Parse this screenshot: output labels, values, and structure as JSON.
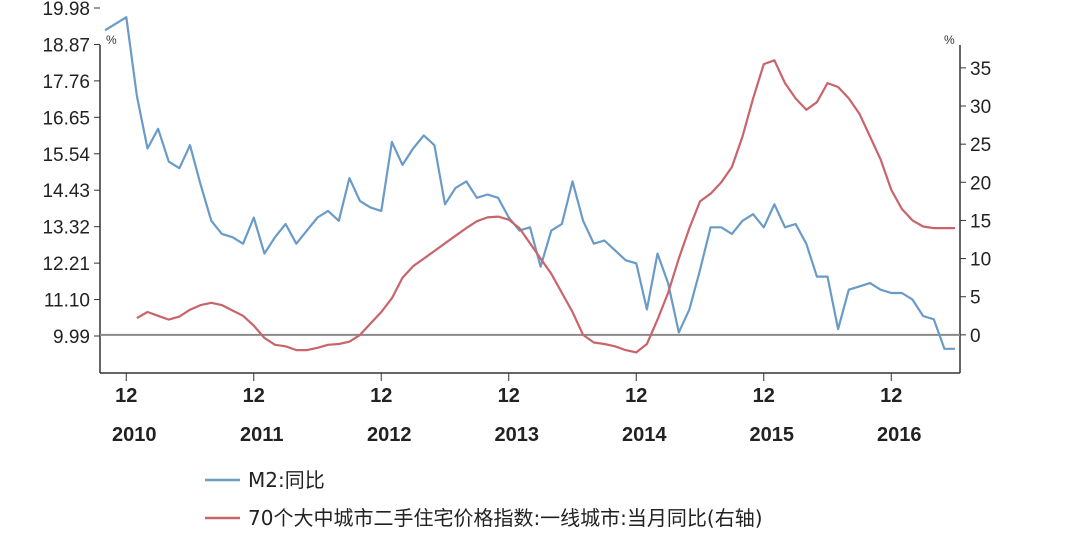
{
  "chart_data": {
    "type": "line",
    "left_unit": "%",
    "right_unit": "%",
    "left_axis": {
      "ticks": [
        "19.98",
        "18.87",
        "17.76",
        "16.65",
        "15.54",
        "14.43",
        "13.32",
        "12.21",
        "11.10",
        "9.99"
      ],
      "ylim": [
        9.99,
        19.98
      ]
    },
    "right_axis": {
      "ticks": [
        "35",
        "30",
        "25",
        "20",
        "15",
        "10",
        "5",
        "0"
      ],
      "ylim": [
        -5,
        38
      ]
    },
    "x_ticks": [
      {
        "month": "12",
        "year": "2010"
      },
      {
        "month": "12",
        "year": "2011"
      },
      {
        "month": "12",
        "year": "2012"
      },
      {
        "month": "12",
        "year": "2013"
      },
      {
        "month": "12",
        "year": "2014"
      },
      {
        "month": "12",
        "year": "2015"
      },
      {
        "month": "12",
        "year": "2016"
      }
    ],
    "xlim": [
      "2010-10",
      "2017-06"
    ],
    "zero_line_right_value": 0,
    "colors": {
      "m2": "#6a9bc8",
      "house": "#c8646a",
      "zero_line": "#8a8a8a"
    },
    "series": [
      {
        "name": "M2:同比",
        "axis": "left",
        "color": "#6a9bc8",
        "x": [
          "2010-10",
          "2010-11",
          "2010-12",
          "2011-01",
          "2011-02",
          "2011-03",
          "2011-04",
          "2011-05",
          "2011-06",
          "2011-07",
          "2011-08",
          "2011-09",
          "2011-10",
          "2011-11",
          "2011-12",
          "2012-01",
          "2012-02",
          "2012-03",
          "2012-04",
          "2012-05",
          "2012-06",
          "2012-07",
          "2012-08",
          "2012-09",
          "2012-10",
          "2012-11",
          "2012-12",
          "2013-01",
          "2013-02",
          "2013-03",
          "2013-04",
          "2013-05",
          "2013-06",
          "2013-07",
          "2013-08",
          "2013-09",
          "2013-10",
          "2013-11",
          "2013-12",
          "2014-01",
          "2014-02",
          "2014-03",
          "2014-04",
          "2014-05",
          "2014-06",
          "2014-07",
          "2014-08",
          "2014-09",
          "2014-10",
          "2014-11",
          "2014-12",
          "2015-01",
          "2015-02",
          "2015-03",
          "2015-04",
          "2015-05",
          "2015-06",
          "2015-07",
          "2015-08",
          "2015-09",
          "2015-10",
          "2015-11",
          "2015-12",
          "2016-01",
          "2016-02",
          "2016-03",
          "2016-04",
          "2016-05",
          "2016-06",
          "2016-07",
          "2016-08",
          "2016-09",
          "2016-10",
          "2016-11",
          "2016-12",
          "2017-01",
          "2017-02",
          "2017-03",
          "2017-04",
          "2017-05",
          "2017-06"
        ],
        "values": [
          19.3,
          19.5,
          19.7,
          17.3,
          15.7,
          16.3,
          15.3,
          15.1,
          15.8,
          14.6,
          13.5,
          13.1,
          13.0,
          12.8,
          13.6,
          12.5,
          13.0,
          13.4,
          12.8,
          13.2,
          13.6,
          13.8,
          13.5,
          14.8,
          14.1,
          13.9,
          13.8,
          15.9,
          15.2,
          15.7,
          16.1,
          15.8,
          14.0,
          14.5,
          14.7,
          14.2,
          14.3,
          14.2,
          13.6,
          13.2,
          13.3,
          12.1,
          13.2,
          13.4,
          14.7,
          13.5,
          12.8,
          12.9,
          12.6,
          12.3,
          12.2,
          10.8,
          12.5,
          11.6,
          10.1,
          10.8,
          12.0,
          13.3,
          13.3,
          13.1,
          13.5,
          13.7,
          13.3,
          14.0,
          13.3,
          13.4,
          12.8,
          11.8,
          11.8,
          10.2,
          11.4,
          11.5,
          11.6,
          11.4,
          11.3,
          11.3,
          11.1,
          10.6,
          10.5,
          9.6,
          9.6
        ]
      },
      {
        "name": "70个大中城市二手住宅价格指数:一线城市:当月同比(右轴)",
        "axis": "right",
        "color": "#c8646a",
        "x": [
          "2011-01",
          "2011-02",
          "2011-03",
          "2011-04",
          "2011-05",
          "2011-06",
          "2011-07",
          "2011-08",
          "2011-09",
          "2011-10",
          "2011-11",
          "2011-12",
          "2012-01",
          "2012-02",
          "2012-03",
          "2012-04",
          "2012-05",
          "2012-06",
          "2012-07",
          "2012-08",
          "2012-09",
          "2012-10",
          "2012-11",
          "2012-12",
          "2013-01",
          "2013-02",
          "2013-03",
          "2013-04",
          "2013-05",
          "2013-06",
          "2013-07",
          "2013-08",
          "2013-09",
          "2013-10",
          "2013-11",
          "2013-12",
          "2014-01",
          "2014-02",
          "2014-03",
          "2014-04",
          "2014-05",
          "2014-06",
          "2014-07",
          "2014-08",
          "2014-09",
          "2014-10",
          "2014-11",
          "2014-12",
          "2015-01",
          "2015-02",
          "2015-03",
          "2015-04",
          "2015-05",
          "2015-06",
          "2015-07",
          "2015-08",
          "2015-09",
          "2015-10",
          "2015-11",
          "2015-12",
          "2016-01",
          "2016-02",
          "2016-03",
          "2016-04",
          "2016-05",
          "2016-06",
          "2016-07",
          "2016-08",
          "2016-09",
          "2016-10",
          "2016-11",
          "2016-12",
          "2017-01",
          "2017-02",
          "2017-03",
          "2017-04",
          "2017-05",
          "2017-06"
        ],
        "values": [
          2.2,
          3.0,
          2.5,
          2.0,
          2.4,
          3.3,
          3.9,
          4.2,
          3.9,
          3.2,
          2.5,
          1.2,
          -0.4,
          -1.3,
          -1.5,
          -2.0,
          -2.0,
          -1.7,
          -1.3,
          -1.2,
          -0.9,
          0.0,
          1.5,
          3.0,
          4.8,
          7.5,
          9.0,
          10.0,
          11.0,
          12.0,
          13.0,
          14.0,
          14.9,
          15.4,
          15.5,
          15.1,
          14.0,
          12.0,
          10.0,
          8.0,
          5.5,
          3.0,
          0.0,
          -1.0,
          -1.2,
          -1.5,
          -2.0,
          -2.3,
          -1.2,
          2.0,
          5.5,
          10.0,
          14.0,
          17.5,
          18.5,
          20.0,
          22.0,
          26.0,
          31.0,
          35.5,
          36.0,
          33.0,
          31.0,
          29.5,
          30.5,
          33.0,
          32.5,
          31.0,
          29.0,
          26.0,
          23.0,
          19.0,
          16.5,
          15.0,
          14.2,
          14.0,
          14.0,
          14.0
        ]
      }
    ]
  }
}
